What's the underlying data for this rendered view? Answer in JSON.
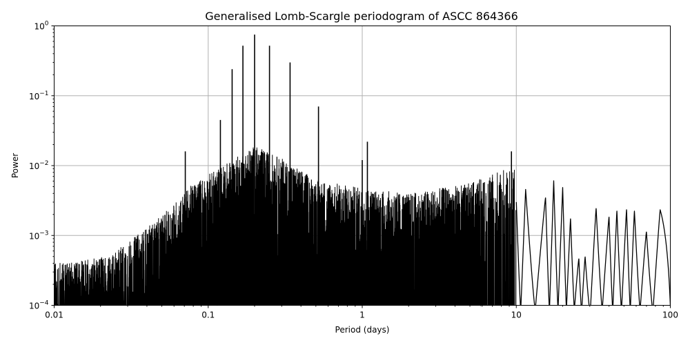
{
  "chart_data": {
    "type": "line",
    "title": "Generalised Lomb-Scargle periodogram of ASCC 864366",
    "xlabel": "Period (days)",
    "ylabel": "Power",
    "xscale": "log",
    "yscale": "log",
    "xlim": [
      0.01,
      100
    ],
    "ylim": [
      0.0001,
      1
    ],
    "grid": true,
    "legend": null,
    "x_ticks": [
      {
        "value": 0.01,
        "label": "0.01"
      },
      {
        "value": 0.1,
        "label": "0.1"
      },
      {
        "value": 1,
        "label": "1"
      },
      {
        "value": 10,
        "label": "10"
      },
      {
        "value": 100,
        "label": "100"
      }
    ],
    "y_ticks": [
      {
        "value": 0.0001,
        "base": "10",
        "exp": "−4"
      },
      {
        "value": 0.001,
        "base": "10",
        "exp": "−3"
      },
      {
        "value": 0.01,
        "base": "10",
        "exp": "−2"
      },
      {
        "value": 0.1,
        "base": "10",
        "exp": "−1"
      },
      {
        "value": 1,
        "base": "10",
        "exp": "0"
      }
    ],
    "line_color": "#000000",
    "grid_color": "#b0b0b0",
    "peaks": [
      {
        "period": 0.143,
        "power": 0.24
      },
      {
        "period": 0.168,
        "power": 0.52
      },
      {
        "period": 0.2,
        "power": 0.75
      },
      {
        "period": 0.25,
        "power": 0.52
      },
      {
        "period": 0.34,
        "power": 0.3
      },
      {
        "period": 0.52,
        "power": 0.07
      },
      {
        "period": 0.071,
        "power": 0.016
      },
      {
        "period": 0.12,
        "power": 0.045
      },
      {
        "period": 1.0,
        "power": 0.012
      },
      {
        "period": 1.08,
        "power": 0.022
      },
      {
        "period": 9.3,
        "power": 0.016
      }
    ],
    "envelope": [
      {
        "period": 0.01,
        "power": 0.00025
      },
      {
        "period": 0.02,
        "power": 0.0003
      },
      {
        "period": 0.03,
        "power": 0.0005
      },
      {
        "period": 0.05,
        "power": 0.0012
      },
      {
        "period": 0.08,
        "power": 0.0035
      },
      {
        "period": 0.12,
        "power": 0.006
      },
      {
        "period": 0.2,
        "power": 0.012
      },
      {
        "period": 0.3,
        "power": 0.008
      },
      {
        "period": 0.5,
        "power": 0.004
      },
      {
        "period": 1.0,
        "power": 0.003
      },
      {
        "period": 2.0,
        "power": 0.0025
      },
      {
        "period": 5.0,
        "power": 0.0035
      },
      {
        "period": 9.0,
        "power": 0.006
      }
    ],
    "long_period_lobes": [
      {
        "period": 11.5,
        "power": 0.0045
      },
      {
        "period": 15.5,
        "power": 0.0034
      },
      {
        "period": 17.5,
        "power": 0.006
      },
      {
        "period": 20.0,
        "power": 0.0048
      },
      {
        "period": 22.5,
        "power": 0.0017
      },
      {
        "period": 25.5,
        "power": 0.00045
      },
      {
        "period": 28.0,
        "power": 0.00048
      },
      {
        "period": 33.0,
        "power": 0.0024
      },
      {
        "period": 40.0,
        "power": 0.0018
      },
      {
        "period": 45.0,
        "power": 0.0022
      },
      {
        "period": 52.0,
        "power": 0.0023
      },
      {
        "period": 58.5,
        "power": 0.0022
      },
      {
        "period": 70.0,
        "power": 0.0011
      },
      {
        "period": 86.0,
        "power": 0.0023
      }
    ]
  }
}
